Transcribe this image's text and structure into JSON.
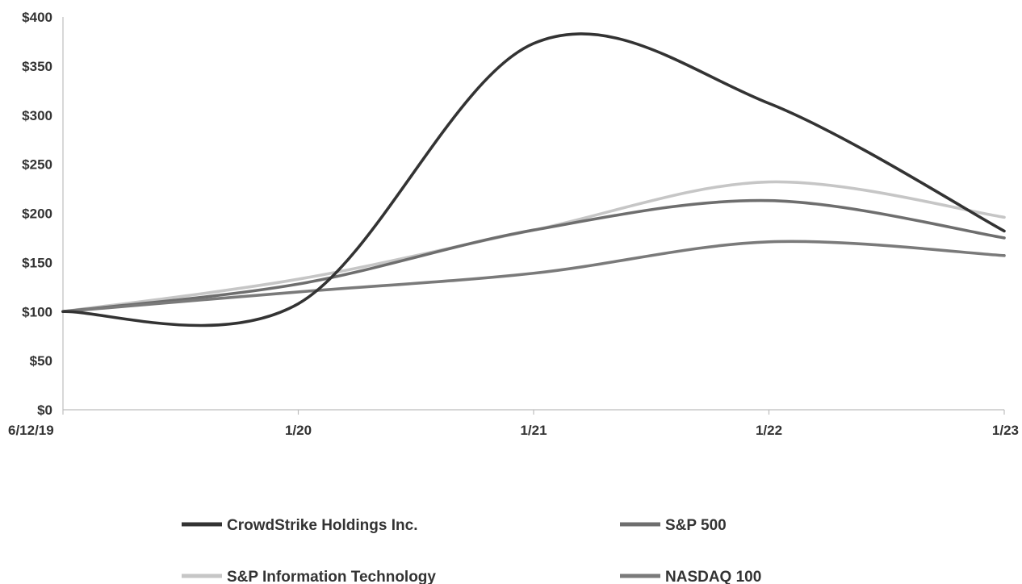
{
  "chart_data": {
    "type": "line",
    "title": "",
    "xlabel": "",
    "ylabel": "",
    "x": [
      "6/12/19",
      "1/20",
      "1/21",
      "1/22",
      "1/23"
    ],
    "y_ticks": [
      "$0",
      "$50",
      "$100",
      "$150",
      "$200",
      "$250",
      "$300",
      "$350",
      "$400"
    ],
    "ylim": [
      0,
      400
    ],
    "grid": false,
    "legend_position": "bottom",
    "series": [
      {
        "name": "CrowdStrike Holdings Inc.",
        "color": "#333333",
        "values": [
          100,
          108,
          373,
          312,
          182
        ]
      },
      {
        "name": "S&P 500",
        "color": "#6e6e6e",
        "values": [
          100,
          128,
          183,
          213,
          175
        ]
      },
      {
        "name": "S&P Information Technology",
        "color": "#c6c6c6",
        "values": [
          100,
          133,
          183,
          232,
          196
        ]
      },
      {
        "name": "NASDAQ 100",
        "color": "#7a7a7a",
        "values": [
          100,
          120,
          139,
          171,
          157
        ]
      }
    ]
  }
}
